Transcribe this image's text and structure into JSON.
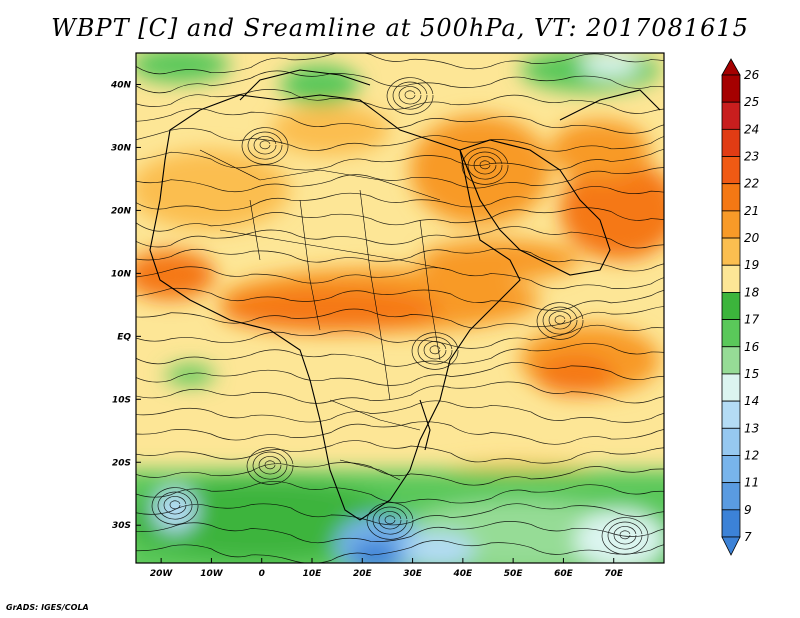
{
  "title": "WBPT [C] and Sreamline at 500hPa, VT: 2017081615",
  "footer": "GrADS: IGES/COLA",
  "map": {
    "lon_range": [
      -25,
      80
    ],
    "lat_range": [
      -36,
      45
    ],
    "lat_ticks": [
      {
        "value": 40,
        "label": "40N"
      },
      {
        "value": 30,
        "label": "30N"
      },
      {
        "value": 20,
        "label": "20N"
      },
      {
        "value": 10,
        "label": "10N"
      },
      {
        "value": 0,
        "label": "EQ"
      },
      {
        "value": -10,
        "label": "10S"
      },
      {
        "value": -20,
        "label": "20S"
      },
      {
        "value": -30,
        "label": "30S"
      }
    ],
    "lon_ticks": [
      {
        "value": -20,
        "label": "20W"
      },
      {
        "value": -10,
        "label": "10W"
      },
      {
        "value": 0,
        "label": "0"
      },
      {
        "value": 10,
        "label": "10E"
      },
      {
        "value": 20,
        "label": "20E"
      },
      {
        "value": 30,
        "label": "30E"
      },
      {
        "value": 40,
        "label": "40E"
      },
      {
        "value": 50,
        "label": "50E"
      },
      {
        "value": 60,
        "label": "60E"
      },
      {
        "value": 70,
        "label": "70E"
      }
    ]
  },
  "colorbar": {
    "labels": [
      "26",
      "25",
      "24",
      "23",
      "22",
      "21",
      "20",
      "19",
      "18",
      "17",
      "16",
      "15",
      "14",
      "13",
      "12",
      "11",
      "9",
      "7"
    ],
    "colors": [
      "#a50000",
      "#c81e1e",
      "#e13c14",
      "#f05a14",
      "#f57814",
      "#f89a28",
      "#fbbe50",
      "#fde696",
      "#3cb43c",
      "#5ac85a",
      "#96dc96",
      "#dcf5f0",
      "#b4dcf5",
      "#96c8f0",
      "#78b4eb",
      "#5a9be1",
      "#3c82d7"
    ],
    "top_color": "#a50000",
    "bottom_color": "#3c82d7"
  }
}
